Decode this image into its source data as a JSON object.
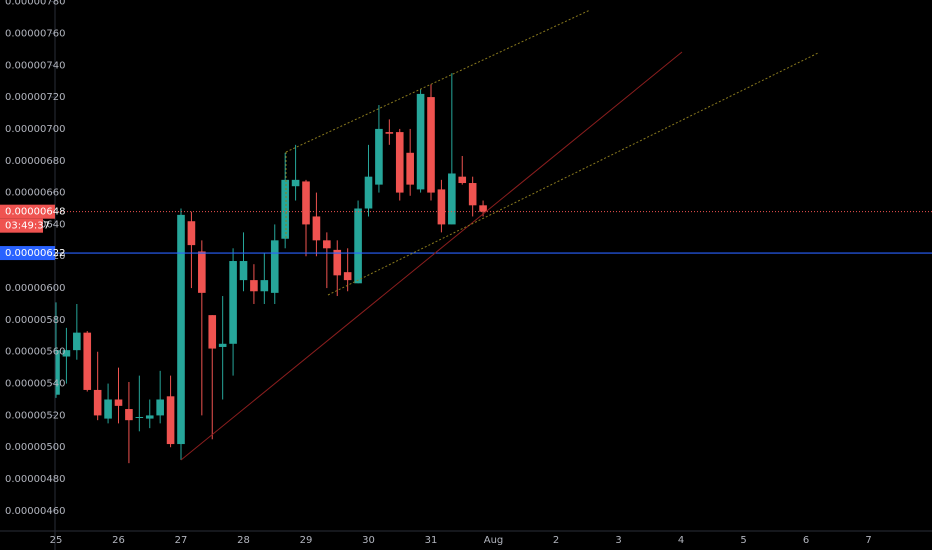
{
  "chart_data": {
    "type": "candlestick",
    "up_color": "#26a69a",
    "down_color": "#ef5350",
    "ylim": [
      4.48e-06,
      7.81e-06
    ],
    "yticks": [
      {
        "value": 7.8e-06,
        "label": "0.00000780"
      },
      {
        "value": 7.6e-06,
        "label": "0.00000760"
      },
      {
        "value": 7.4e-06,
        "label": "0.00000740"
      },
      {
        "value": 7.2e-06,
        "label": "0.00000720"
      },
      {
        "value": 7e-06,
        "label": "0.00000700"
      },
      {
        "value": 6.8e-06,
        "label": "0.00000680"
      },
      {
        "value": 6.6e-06,
        "label": "0.00000660"
      },
      {
        "value": 6.4e-06,
        "label": "0.00000640"
      },
      {
        "value": 6.2e-06,
        "label": "0.00000620"
      },
      {
        "value": 6e-06,
        "label": "0.00000600"
      },
      {
        "value": 5.8e-06,
        "label": "0.00000580"
      },
      {
        "value": 5.6e-06,
        "label": "0.00000560"
      },
      {
        "value": 5.4e-06,
        "label": "0.00000540"
      },
      {
        "value": 5.2e-06,
        "label": "0.00000520"
      },
      {
        "value": 5e-06,
        "label": "0.00000500"
      },
      {
        "value": 4.8e-06,
        "label": "0.00000480"
      },
      {
        "value": 4.6e-06,
        "label": "0.00000460"
      }
    ],
    "x_labels": [
      "25",
      "26",
      "27",
      "28",
      "29",
      "30",
      "31",
      "Aug",
      "2",
      "3",
      "4",
      "5",
      "6",
      "7"
    ],
    "open": [
      5.33e-06,
      5.57e-06,
      5.61e-06,
      5.72e-06,
      5.36e-06,
      5.18e-06,
      5.3e-06,
      5.24e-06,
      5.19e-06,
      5.18e-06,
      5.2e-06,
      5.32e-06,
      5.02e-06,
      6.42e-06,
      6.23e-06,
      5.83e-06,
      5.63e-06,
      5.65e-06,
      6.05e-06,
      6.05e-06,
      5.98e-06,
      5.97e-06,
      6.31e-06,
      6.64e-06,
      6.67e-06,
      6.45e-06,
      6.3e-06,
      6.24e-06,
      6.1e-06,
      6.03e-06,
      6.5e-06,
      6.65e-06,
      6.98e-06,
      6.98e-06,
      6.85e-06,
      6.62e-06,
      7.2e-06,
      6.62e-06,
      6.4e-06,
      6.7e-06,
      6.66e-06,
      6.52e-06
    ],
    "high": [
      5.91e-06,
      5.75e-06,
      5.9e-06,
      5.73e-06,
      5.6e-06,
      5.4e-06,
      5.5e-06,
      5.41e-06,
      5.45e-06,
      5.3e-06,
      5.48e-06,
      5.45e-06,
      6.5e-06,
      6.48e-06,
      6.3e-06,
      5.83e-06,
      5.95e-06,
      6.25e-06,
      6.35e-06,
      6.15e-06,
      6.22e-06,
      6.4e-06,
      6.85e-06,
      6.9e-06,
      6.68e-06,
      6.6e-06,
      6.35e-06,
      6.3e-06,
      6.25e-06,
      6.55e-06,
      6.9e-06,
      7.15e-06,
      7.06e-06,
      7e-06,
      7e-06,
      7.25e-06,
      7.28e-06,
      6.68e-06,
      7.35e-06,
      6.83e-06,
      6.7e-06,
      6.55e-06
    ],
    "low": [
      5.31e-06,
      5.4e-06,
      5.55e-06,
      5.35e-06,
      5.17e-06,
      5.15e-06,
      5.15e-06,
      4.9e-06,
      5.1e-06,
      5.12e-06,
      5.15e-06,
      5e-06,
      4.92e-06,
      6e-06,
      5.2e-06,
      5.05e-06,
      5.3e-06,
      5.45e-06,
      5.98e-06,
      5.9e-06,
      5.9e-06,
      5.9e-06,
      6.25e-06,
      6.55e-06,
      6.2e-06,
      6.2e-06,
      6e-06,
      5.95e-06,
      5.98e-06,
      6.03e-06,
      6.45e-06,
      6.6e-06,
      6.9e-06,
      6.55e-06,
      6.58e-06,
      6.6e-06,
      6.55e-06,
      6.35e-06,
      6.4e-06,
      6.65e-06,
      6.45e-06,
      6.45e-06
    ],
    "close": [
      5.61e-06,
      5.61e-06,
      5.72e-06,
      5.36e-06,
      5.2e-06,
      5.3e-06,
      5.26e-06,
      5.17e-06,
      5.19e-06,
      5.2e-06,
      5.3e-06,
      5.02e-06,
      6.46e-06,
      6.27e-06,
      5.97e-06,
      5.62e-06,
      5.65e-06,
      6.17e-06,
      6.17e-06,
      5.98e-06,
      6.05e-06,
      6.3e-06,
      6.68e-06,
      6.68e-06,
      6.4e-06,
      6.3e-06,
      6.25e-06,
      6.08e-06,
      6.05e-06,
      6.5e-06,
      6.7e-06,
      7e-06,
      6.97e-06,
      6.6e-06,
      6.65e-06,
      7.22e-06,
      6.6e-06,
      6.4e-06,
      6.72e-06,
      6.66e-06,
      6.52e-06,
      6.48e-06
    ],
    "price_line": {
      "value": 6.48e-06,
      "label": "0.00000648",
      "countdown": "03:49:37"
    },
    "level_line": {
      "value": 6.22e-06,
      "label": "0.00000622"
    }
  }
}
